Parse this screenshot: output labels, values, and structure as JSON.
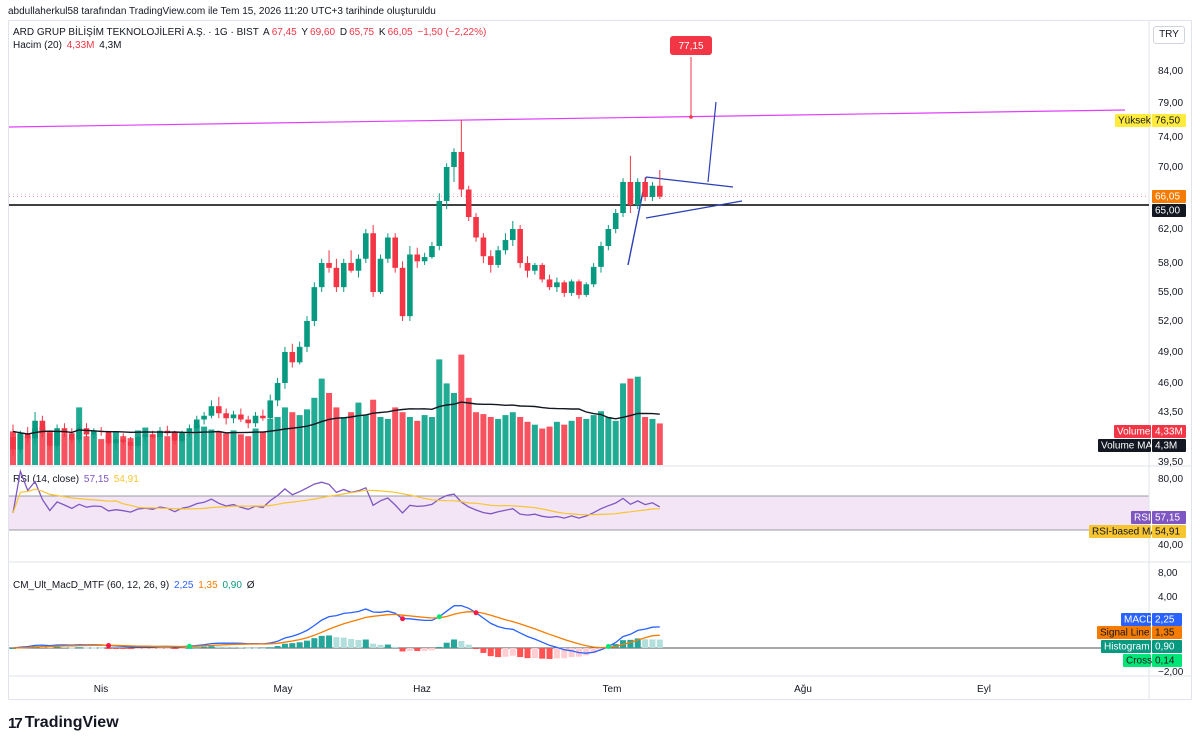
{
  "creator_line": "abdullaherkul58 tarafından TradingView.com ile Tem 15, 2026 11:20 UTC+3 tarihinde oluşturuldu",
  "symbol": {
    "name": "ARD GRUP BİLİŞİM TEKNOLOJİLERİ A.Ş. · 1G · BIST",
    "o_label": "A",
    "o_value": "67,45",
    "h_label": "Y",
    "h_value": "69,60",
    "l_label": "D",
    "l_value": "65,75",
    "c_label": "K",
    "c_value": "66,05",
    "change": "−1,50 (−2,22%)"
  },
  "volume_legend": {
    "label": "Hacim (20)",
    "volume": "4,33M",
    "ma": "4,3M"
  },
  "rsi_legend": {
    "label": "RSI (14, close)",
    "rsi": "57,15",
    "ma": "54,91"
  },
  "macd_legend": {
    "label": "CM_Ult_MacD_MTF (60, 12, 26, 9)",
    "macd": "2,25",
    "signal": "1,35",
    "hist": "0,90",
    "cross": "Ø"
  },
  "currency": "TRY",
  "logo_text": "TradingView",
  "logo_mark": "17",
  "colors": {
    "up": "#089981",
    "down": "#f23645",
    "up_light": "#22ab94",
    "down_light": "#f7525f"
  },
  "chart_data": {
    "type": "candlestick",
    "price_axis_ticks": [
      "84,00",
      "79,00",
      "74,00",
      "70,00",
      "66,00",
      "62,00",
      "58,00",
      "55,00",
      "52,00",
      "49,00",
      "46,00",
      "43,50",
      "39,50"
    ],
    "price_tick_values": [
      84,
      79,
      74,
      70,
      66,
      62,
      58,
      55,
      52,
      49,
      46,
      43.5,
      39.5
    ],
    "rsi_axis_ticks": [
      "80,00",
      "40,00"
    ],
    "macd_axis_ticks": [
      "8,00",
      "4,00",
      "0,00",
      "−2,00"
    ],
    "x_axis_labels": [
      "Nis",
      "May",
      "Haz",
      "Tem",
      "Ağu",
      "Eyl"
    ],
    "price_labels": {
      "high_tag": "77,15",
      "yuksek_label": "Yüksek",
      "yuksek_value": "76,50",
      "last": "66,05",
      "support": "65,00",
      "volume_label": "Volume",
      "volume_value": "4,33M",
      "volume_ma_label": "Volume MA",
      "volume_ma_value": "4,3M",
      "rsi_label": "RSI",
      "rsi_value": "57,15",
      "rsi_ma_label": "RSI-based MA",
      "rsi_ma_value": "54,91",
      "macd_label": "MACD",
      "macd_value": "2,25",
      "signal_label": "Signal Line",
      "signal_value": "1,35",
      "hist_label": "Histogram",
      "hist_value": "0,90",
      "cross_label": "Cross",
      "cross_value": "0,14"
    },
    "candles": [
      [
        41.5,
        42.5,
        40.0,
        40.5
      ],
      [
        40.5,
        42.0,
        40.2,
        41.8
      ],
      [
        41.8,
        42.3,
        41.0,
        41.4
      ],
      [
        41.4,
        43.5,
        41.0,
        42.8
      ],
      [
        42.8,
        43.2,
        41.5,
        41.8
      ],
      [
        41.8,
        42.0,
        40.5,
        40.8
      ],
      [
        40.8,
        42.5,
        40.5,
        42.2
      ],
      [
        42.2,
        42.6,
        41.5,
        41.8
      ],
      [
        41.8,
        42.2,
        41.0,
        41.3
      ],
      [
        41.3,
        42.5,
        41.0,
        42.2
      ],
      [
        42.2,
        42.6,
        41.5,
        41.7
      ],
      [
        41.7,
        42.2,
        41.4,
        42.0
      ],
      [
        42.0,
        42.3,
        41.6,
        41.9
      ],
      [
        41.9,
        42.0,
        40.8,
        41.0
      ],
      [
        41.0,
        41.5,
        40.5,
        41.3
      ],
      [
        41.3,
        41.8,
        40.9,
        41.1
      ],
      [
        41.1,
        41.5,
        40.5,
        40.8
      ],
      [
        40.8,
        41.6,
        40.6,
        41.5
      ],
      [
        41.5,
        42.0,
        41.2,
        41.7
      ],
      [
        41.7,
        42.0,
        41.4,
        41.5
      ],
      [
        41.5,
        42.3,
        41.3,
        42.0
      ],
      [
        42.0,
        42.4,
        41.6,
        41.8
      ],
      [
        41.8,
        42.0,
        40.9,
        41.2
      ],
      [
        41.2,
        42.0,
        41.0,
        41.9
      ],
      [
        41.9,
        42.5,
        41.5,
        42.2
      ],
      [
        42.2,
        43.2,
        42.0,
        42.9
      ],
      [
        42.9,
        43.5,
        42.5,
        43.2
      ],
      [
        43.2,
        44.5,
        43.0,
        44.0
      ],
      [
        44.0,
        44.8,
        43.0,
        43.4
      ],
      [
        43.4,
        43.8,
        42.5,
        43.0
      ],
      [
        43.0,
        43.6,
        42.6,
        43.3
      ],
      [
        43.3,
        43.8,
        42.7,
        42.9
      ],
      [
        42.9,
        43.2,
        42.2,
        42.6
      ],
      [
        42.6,
        43.5,
        42.3,
        43.2
      ],
      [
        43.2,
        43.7,
        42.8,
        43.0
      ],
      [
        43.0,
        45.0,
        42.8,
        44.5
      ],
      [
        44.5,
        46.5,
        44.0,
        46.0
      ],
      [
        46.0,
        49.5,
        45.5,
        49.0
      ],
      [
        49.0,
        49.8,
        47.5,
        48.0
      ],
      [
        48.0,
        50.0,
        47.8,
        49.5
      ],
      [
        49.5,
        52.5,
        49.0,
        52.0
      ],
      [
        52.0,
        56.0,
        51.5,
        55.5
      ],
      [
        55.5,
        58.5,
        55.0,
        58.0
      ],
      [
        58.0,
        59.5,
        57.0,
        57.5
      ],
      [
        57.5,
        58.5,
        55.0,
        55.5
      ],
      [
        55.5,
        58.5,
        55.0,
        58.0
      ],
      [
        58.0,
        59.5,
        57.0,
        57.2
      ],
      [
        57.2,
        59.0,
        56.5,
        58.5
      ],
      [
        58.5,
        62.0,
        58.0,
        61.5
      ],
      [
        61.5,
        62.5,
        54.5,
        55.0
      ],
      [
        55.0,
        59.0,
        54.8,
        58.5
      ],
      [
        58.5,
        61.5,
        58.0,
        61.0
      ],
      [
        61.0,
        61.5,
        57.0,
        57.5
      ],
      [
        57.5,
        58.2,
        52.0,
        52.5
      ],
      [
        52.5,
        60.0,
        52.0,
        59.0
      ],
      [
        59.0,
        59.8,
        57.5,
        58.2
      ],
      [
        58.2,
        59.2,
        57.8,
        58.7
      ],
      [
        58.7,
        60.5,
        58.5,
        60.0
      ],
      [
        60.0,
        66.5,
        59.5,
        65.5
      ],
      [
        65.5,
        70.5,
        64.5,
        70.0
      ],
      [
        70.0,
        72.5,
        68.0,
        72.0
      ],
      [
        72.0,
        76.5,
        66.0,
        67.0
      ],
      [
        67.0,
        67.5,
        63.0,
        63.5
      ],
      [
        63.5,
        64.0,
        60.5,
        61.0
      ],
      [
        61.0,
        61.5,
        58.0,
        58.8
      ],
      [
        58.8,
        59.5,
        57.0,
        57.8
      ],
      [
        57.8,
        60.0,
        57.5,
        59.5
      ],
      [
        59.5,
        61.5,
        59.0,
        60.7
      ],
      [
        60.7,
        63.0,
        60.0,
        62.0
      ],
      [
        62.0,
        62.5,
        57.5,
        58.0
      ],
      [
        58.0,
        58.8,
        56.5,
        57.2
      ],
      [
        57.2,
        58.0,
        56.8,
        57.8
      ],
      [
        57.8,
        58.0,
        56.0,
        56.3
      ],
      [
        56.3,
        56.8,
        55.2,
        55.5
      ],
      [
        55.5,
        56.5,
        55.0,
        56.0
      ],
      [
        56.0,
        56.2,
        54.5,
        54.9
      ],
      [
        54.9,
        56.3,
        54.6,
        56.1
      ],
      [
        56.1,
        56.3,
        54.3,
        54.7
      ],
      [
        54.7,
        56.0,
        54.5,
        55.8
      ],
      [
        55.8,
        58.0,
        55.5,
        57.6
      ],
      [
        57.6,
        60.5,
        57.0,
        60.0
      ],
      [
        60.0,
        62.5,
        59.5,
        62.0
      ],
      [
        62.0,
        64.5,
        61.5,
        64.0
      ],
      [
        64.0,
        68.5,
        63.5,
        68.0
      ],
      [
        68.0,
        71.5,
        64.0,
        65.0
      ],
      [
        65.0,
        68.5,
        64.5,
        68.0
      ],
      [
        68.0,
        68.6,
        65.5,
        66.0
      ],
      [
        66.0,
        68.0,
        65.5,
        67.5
      ],
      [
        67.5,
        69.6,
        65.75,
        66.05
      ]
    ],
    "volume": [
      3.5,
      3.2,
      3.0,
      3.8,
      4.0,
      3.6,
      3.4,
      3.3,
      2.8,
      6.0,
      3.0,
      3.2,
      2.7,
      3.1,
      3.5,
      3.0,
      2.8,
      3.6,
      3.9,
      3.2,
      3.5,
      3.0,
      3.4,
      3.1,
      3.3,
      4.2,
      4.0,
      3.7,
      3.5,
      3.3,
      3.6,
      3.2,
      3.0,
      3.8,
      3.5,
      4.8,
      5.0,
      6.0,
      5.5,
      5.2,
      5.8,
      7.0,
      9.0,
      7.5,
      6.0,
      5.0,
      5.5,
      6.5,
      5.2,
      6.8,
      5.0,
      4.8,
      6.0,
      5.5,
      5.0,
      4.6,
      5.2,
      5.0,
      11.0,
      8.5,
      7.5,
      11.5,
      7.0,
      5.5,
      5.3,
      5.0,
      4.8,
      5.2,
      5.5,
      5.0,
      4.5,
      4.2,
      3.8,
      4.0,
      4.5,
      4.2,
      4.6,
      5.0,
      4.8,
      5.2,
      5.6,
      5.0,
      4.6,
      8.5,
      9.0,
      9.2,
      5.0,
      4.8,
      4.33
    ],
    "volume_ma_end": 4.3,
    "rsi_ma_end": 54.91,
    "rsi_end": 57.15,
    "macd_end": 2.25,
    "signal_end": 1.35,
    "hist_end": 0.9,
    "cross_end": 0.14,
    "resistance_trendline": {
      "from": 76.5,
      "to": 78.4
    },
    "support_level": 65.0,
    "high_marker": 77.15,
    "grid": false
  }
}
